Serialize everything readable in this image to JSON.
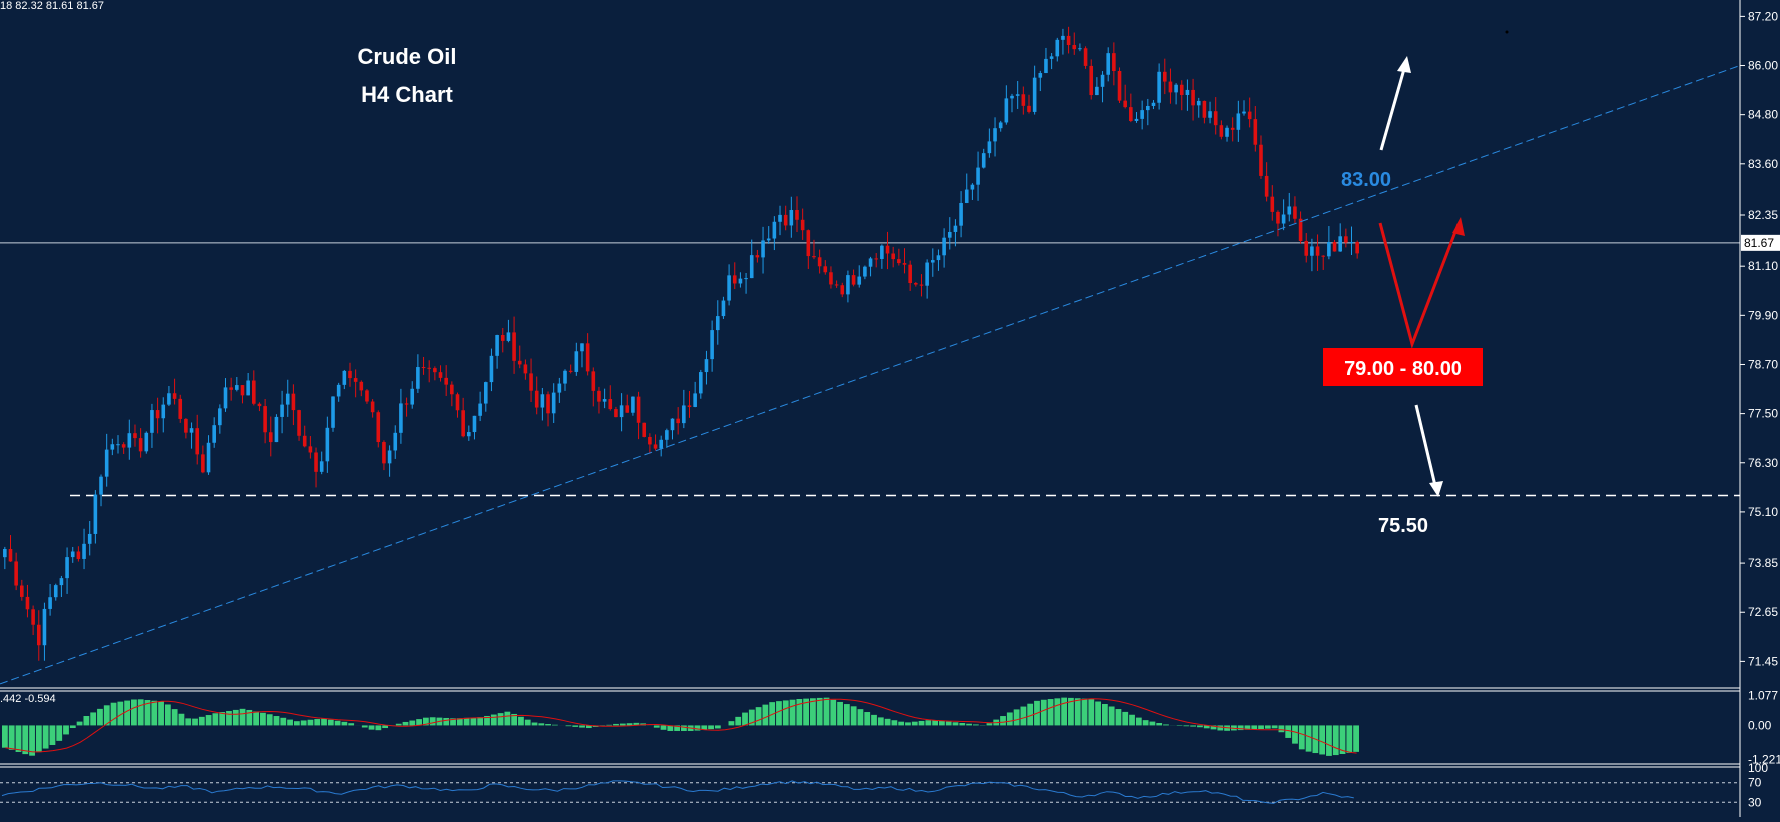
{
  "ohlc_readout": "18 82.32 81.61 81.67",
  "title_line1": "Crude Oil",
  "title_line2": "H4 Chart",
  "annotations": {
    "upper_target": "83.00",
    "zone": "79.00 - 80.00",
    "support": "75.50"
  },
  "colors": {
    "background": "#0a1f3d",
    "bull_candle": "#1e9be8",
    "bear_candle": "#e01010",
    "trendline": "#2a8ae0",
    "upper_target_text": "#2a8ae0",
    "zone_box": "#ff0000",
    "macd_hist": "#3ccf7a",
    "signal_line": "#e01010",
    "rsi_line": "#2a7ad0"
  },
  "chart_data": [
    {
      "type": "candlestick",
      "title": "Crude Oil H4 Chart",
      "ylim": [
        70.8,
        87.6
      ],
      "yticks": [
        "87.20",
        "86.00",
        "84.80",
        "83.60",
        "82.35",
        "81.10",
        "79.90",
        "78.70",
        "77.50",
        "76.30",
        "75.10",
        "73.85",
        "72.65",
        "71.45"
      ],
      "current_price": "81.67",
      "support_level": 75.5,
      "trendline": {
        "from": 70.9,
        "to": 86.0
      },
      "close_path": [
        74.2,
        73.2,
        72.0,
        73.3,
        74.0,
        74.4,
        76.5,
        77.0,
        76.6,
        77.4,
        78.0,
        77.2,
        76.2,
        77.8,
        78.3,
        78.0,
        76.8,
        78.0,
        77.0,
        76.2,
        78.0,
        78.5,
        77.8,
        76.3,
        77.6,
        78.5,
        78.3,
        78.0,
        77.0,
        78.1,
        79.5,
        79.0,
        78.0,
        77.5,
        78.6,
        79.0,
        78.0,
        77.3,
        77.8,
        77.0,
        76.8,
        77.6,
        78.2,
        79.8,
        80.8,
        81.1,
        81.8,
        82.4,
        82.3,
        81.1,
        80.8,
        80.6,
        81.2,
        81.6,
        81.3,
        80.6,
        81.0,
        81.6,
        82.4,
        83.5,
        84.2,
        85.2,
        85.0,
        86.0,
        86.6,
        86.4,
        85.4,
        86.1,
        84.8,
        84.9,
        85.6,
        85.6,
        85.2,
        84.7,
        84.2,
        85.1,
        83.8,
        82.2,
        82.6,
        81.5,
        81.3,
        81.9,
        81.67
      ]
    },
    {
      "type": "bar",
      "title": "MACD",
      "readout": ".442 -0.594",
      "ylim": [
        -1.35,
        1.2
      ],
      "yticks": [
        "1.077",
        "0.00",
        "-1.221"
      ],
      "hist_path": [
        -0.8,
        -1.1,
        -0.6,
        0.3,
        0.8,
        0.95,
        0.85,
        0.2,
        0.45,
        0.6,
        0.4,
        0.15,
        0.25,
        0.1,
        -0.2,
        0.1,
        0.3,
        0.25,
        0.3,
        0.5,
        0.1,
        0.0,
        -0.1,
        0.05,
        0.1,
        -0.2,
        -0.2,
        -0.1,
        0.5,
        0.85,
        0.95,
        1.0,
        0.7,
        0.3,
        0.1,
        0.2,
        0.1,
        0.0,
        0.5,
        0.9,
        1.0,
        0.95,
        0.6,
        0.2,
        0.0,
        -0.05,
        -0.2,
        -0.15,
        -0.1,
        -0.9,
        -1.1,
        -0.95
      ]
    },
    {
      "type": "line",
      "title": "RSI",
      "ylim": [
        0,
        100
      ],
      "yticks": [
        "100",
        "70",
        "30"
      ],
      "levels": [
        70,
        30
      ],
      "rsi_path": [
        45,
        55,
        65,
        70,
        66,
        58,
        62,
        50,
        60,
        62,
        56,
        48,
        60,
        64,
        58,
        52,
        66,
        58,
        54,
        63,
        72,
        68,
        58,
        52,
        60,
        70,
        72,
        65,
        55,
        60,
        52,
        62,
        70,
        65,
        55,
        42,
        50,
        40,
        48,
        55,
        42,
        28,
        35,
        48,
        38
      ]
    }
  ]
}
